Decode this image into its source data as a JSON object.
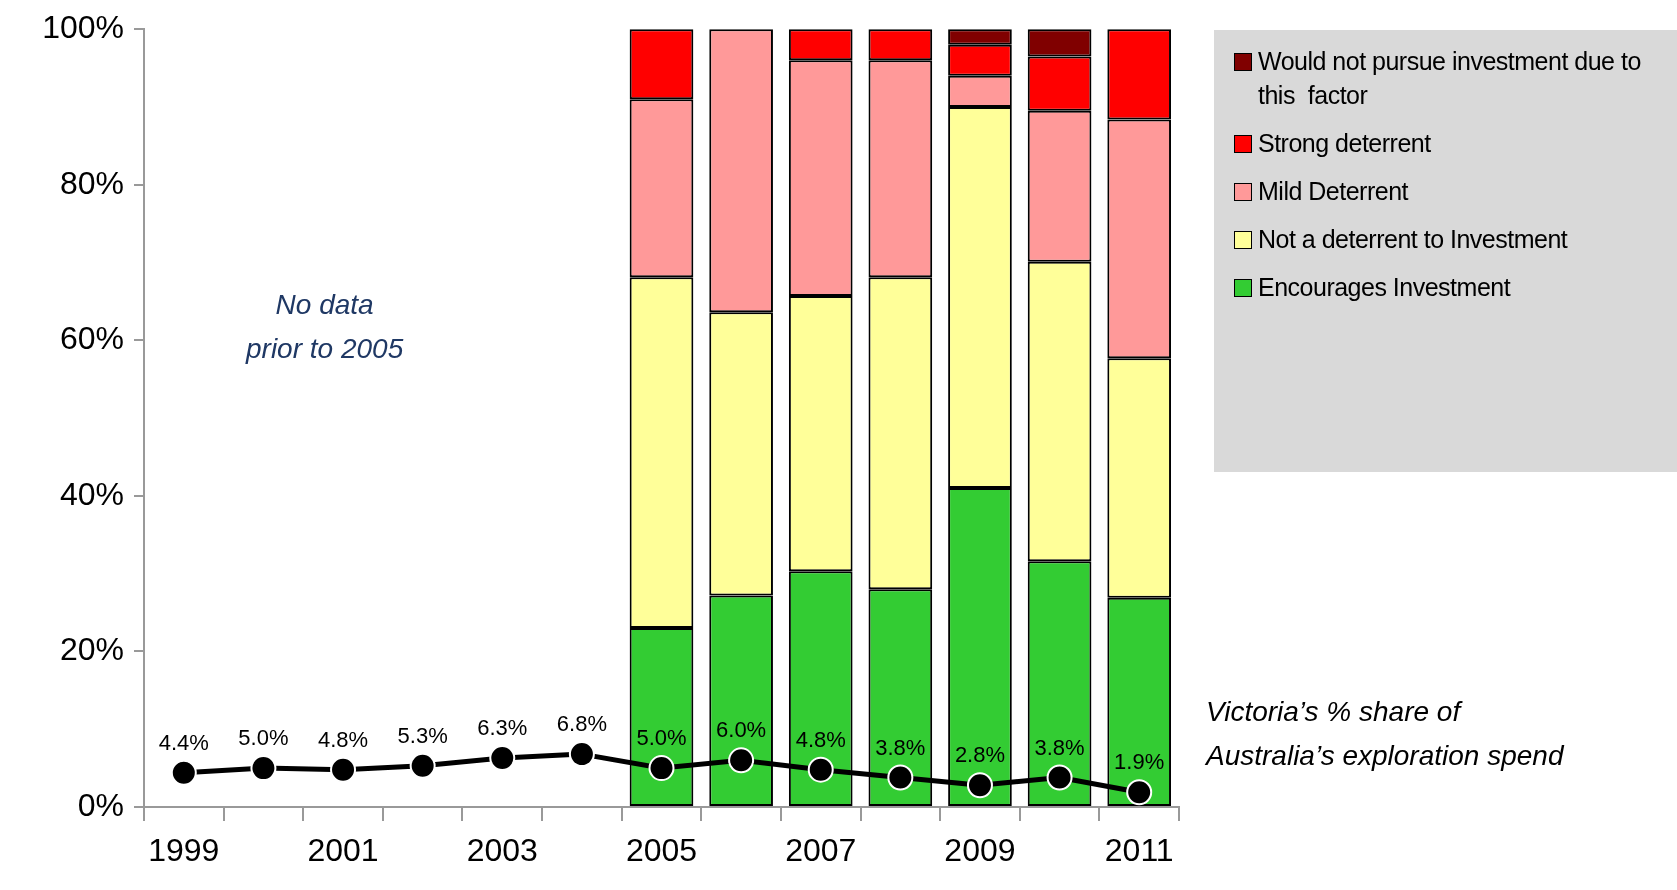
{
  "chart_data": {
    "type": "bar",
    "stacked": true,
    "categories": [
      "1999",
      null,
      "2001",
      null,
      "2003",
      null,
      "2005",
      null,
      "2007",
      null,
      "2009",
      null,
      "2011"
    ],
    "series": [
      {
        "name": "Encourages Investment",
        "color": "#33cc33",
        "values": [
          null,
          null,
          null,
          null,
          null,
          null,
          23.0,
          27.2,
          30.3,
          28.0,
          41.0,
          31.6,
          26.9
        ]
      },
      {
        "name": "Not a deterrent to Investment",
        "color": "#ffff99",
        "values": [
          null,
          null,
          null,
          null,
          null,
          null,
          45.1,
          36.4,
          35.4,
          40.1,
          49.0,
          38.5,
          30.8
        ]
      },
      {
        "name": "Mild Deterrent",
        "color": "#ff9999",
        "values": [
          null,
          null,
          null,
          null,
          null,
          null,
          22.9,
          36.4,
          30.3,
          27.9,
          4.0,
          19.4,
          30.7
        ]
      },
      {
        "name": "Strong deterrent",
        "color": "#ff0000",
        "values": [
          null,
          null,
          null,
          null,
          null,
          null,
          9.0,
          0,
          4.0,
          4.0,
          4.0,
          7.0,
          11.6
        ]
      },
      {
        "name": "Would not pursue investment due to this  factor",
        "color": "#800000",
        "values": [
          null,
          null,
          null,
          null,
          null,
          null,
          0,
          0,
          0,
          0,
          2.0,
          3.5,
          0
        ]
      },
      {
        "type": "line",
        "color": "#000000",
        "marker": "circle",
        "values": [
          4.4,
          5.0,
          4.8,
          5.3,
          6.3,
          6.8,
          5.0,
          6.0,
          4.8,
          3.8,
          2.8,
          3.8,
          1.9
        ],
        "value_labels": [
          "4.4%",
          "5.0%",
          "4.8%",
          "5.3%",
          "6.3%",
          "6.8%",
          "5.0%",
          "6.0%",
          "4.8%",
          "3.8%",
          "2.8%",
          "3.8%",
          "1.9%"
        ]
      }
    ],
    "ylim": [
      0,
      100
    ],
    "yticks": [
      {
        "value": 0,
        "label": "0%"
      },
      {
        "value": 20,
        "label": "20%"
      },
      {
        "value": 40,
        "label": "40%"
      },
      {
        "value": 60,
        "label": "60%"
      },
      {
        "value": 80,
        "label": "80%"
      },
      {
        "value": 100,
        "label": "100%"
      }
    ],
    "grid": false,
    "legend": "top right",
    "annotations": [
      "No data\nprior to 2005",
      "Victoria’s  % share of\nAustralia’s exploration spend"
    ]
  }
}
